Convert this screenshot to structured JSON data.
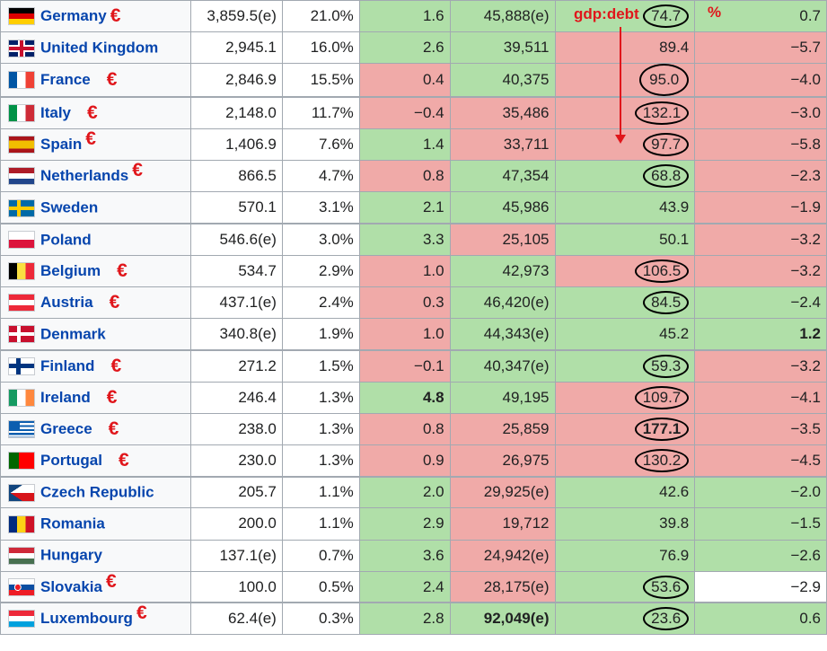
{
  "annotations": {
    "gdp_debt_label": "gdp:debt",
    "percent_label": "%"
  },
  "colors": {
    "green": "#b0dfa8",
    "red": "#f0aaa8",
    "euro": "#e0161b",
    "link": "#0645ad"
  },
  "rows": [
    {
      "country": "Germany",
      "flag": "flag-germany-icon",
      "euro": true,
      "gdp": "3,859.5(e)",
      "share": "21.0%",
      "growth": "1.6",
      "per_capita": "45,888(e)",
      "debt": "74.7",
      "balance": "0.7",
      "c": [
        "g",
        "g",
        "g",
        "g"
      ],
      "circled": true
    },
    {
      "country": "United Kingdom",
      "flag": "flag-uk-icon",
      "euro": false,
      "gdp": "2,945.1",
      "share": "16.0%",
      "growth": "2.6",
      "per_capita": "39,511",
      "debt": "89.4",
      "balance": "−5.7",
      "c": [
        "g",
        "g",
        "r",
        "r"
      ],
      "circled": false
    },
    {
      "country": "France",
      "flag": "flag-france-icon",
      "euro": true,
      "gdp": "2,846.9",
      "share": "15.5%",
      "growth": "0.4",
      "per_capita": "40,375",
      "debt": "95.0",
      "balance": "−4.0",
      "c": [
        "r",
        "g",
        "r",
        "r"
      ],
      "circled": true,
      "tall": true
    },
    {
      "country": "Italy",
      "flag": "flag-italy-icon",
      "euro": true,
      "gdp": "2,148.0",
      "share": "11.7%",
      "growth": "−0.4",
      "per_capita": "35,486",
      "debt": "132.1",
      "balance": "−3.0",
      "c": [
        "r",
        "r",
        "r",
        "r"
      ],
      "circled": true
    },
    {
      "country": "Spain",
      "flag": "flag-spain-icon",
      "euro": true,
      "gdp": "1,406.9",
      "share": "7.6%",
      "growth": "1.4",
      "per_capita": "33,711",
      "debt": "97.7",
      "balance": "−5.8",
      "c": [
        "g",
        "r",
        "r",
        "r"
      ],
      "circled": true
    },
    {
      "country": "Netherlands",
      "flag": "flag-netherlands-icon",
      "euro": true,
      "gdp": "866.5",
      "share": "4.7%",
      "growth": "0.8",
      "per_capita": "47,354",
      "debt": "68.8",
      "balance": "−2.3",
      "c": [
        "r",
        "g",
        "g",
        "r"
      ],
      "circled": true
    },
    {
      "country": "Sweden",
      "flag": "flag-sweden-icon",
      "euro": false,
      "gdp": "570.1",
      "share": "3.1%",
      "growth": "2.1",
      "per_capita": "45,986",
      "debt": "43.9",
      "balance": "−1.9",
      "c": [
        "g",
        "g",
        "g",
        "r"
      ],
      "circled": false
    },
    {
      "country": "Poland",
      "flag": "flag-poland-icon",
      "euro": false,
      "gdp": "546.6(e)",
      "share": "3.0%",
      "growth": "3.3",
      "per_capita": "25,105",
      "debt": "50.1",
      "balance": "−3.2",
      "c": [
        "g",
        "r",
        "g",
        "r"
      ],
      "circled": false
    },
    {
      "country": "Belgium",
      "flag": "flag-belgium-icon",
      "euro": true,
      "gdp": "534.7",
      "share": "2.9%",
      "growth": "1.0",
      "per_capita": "42,973",
      "debt": "106.5",
      "balance": "−3.2",
      "c": [
        "r",
        "g",
        "r",
        "r"
      ],
      "circled": true
    },
    {
      "country": "Austria",
      "flag": "flag-austria-icon",
      "euro": true,
      "gdp": "437.1(e)",
      "share": "2.4%",
      "growth": "0.3",
      "per_capita": "46,420(e)",
      "debt": "84.5",
      "balance": "−2.4",
      "c": [
        "r",
        "g",
        "g",
        "g"
      ],
      "circled": true
    },
    {
      "country": "Denmark",
      "flag": "flag-denmark-icon",
      "euro": false,
      "gdp": "340.8(e)",
      "share": "1.9%",
      "growth": "1.0",
      "per_capita": "44,343(e)",
      "debt": "45.2",
      "balance": "1.2",
      "c": [
        "r",
        "g",
        "g",
        "g"
      ],
      "circled": false,
      "bold_balance": true
    },
    {
      "country": "Finland",
      "flag": "flag-finland-icon",
      "euro": true,
      "gdp": "271.2",
      "share": "1.5%",
      "growth": "−0.1",
      "per_capita": "40,347(e)",
      "debt": "59.3",
      "balance": "−3.2",
      "c": [
        "r",
        "g",
        "g",
        "r"
      ],
      "circled": true
    },
    {
      "country": "Ireland",
      "flag": "flag-ireland-icon",
      "euro": true,
      "gdp": "246.4",
      "share": "1.3%",
      "growth": "4.8",
      "per_capita": "49,195",
      "debt": "109.7",
      "balance": "−4.1",
      "c": [
        "g",
        "g",
        "r",
        "r"
      ],
      "circled": true,
      "bold_growth": true
    },
    {
      "country": "Greece",
      "flag": "flag-greece-icon",
      "euro": true,
      "gdp": "238.0",
      "share": "1.3%",
      "growth": "0.8",
      "per_capita": "25,859",
      "debt": "177.1",
      "balance": "−3.5",
      "c": [
        "r",
        "r",
        "r",
        "r"
      ],
      "circled": true,
      "bold_debt": true
    },
    {
      "country": "Portugal",
      "flag": "flag-portugal-icon",
      "euro": true,
      "gdp": "230.0",
      "share": "1.3%",
      "growth": "0.9",
      "per_capita": "26,975",
      "debt": "130.2",
      "balance": "−4.5",
      "c": [
        "r",
        "r",
        "r",
        "r"
      ],
      "circled": true
    },
    {
      "country": "Czech Republic",
      "flag": "flag-czech-icon",
      "euro": false,
      "gdp": "205.7",
      "share": "1.1%",
      "growth": "2.0",
      "per_capita": "29,925(e)",
      "debt": "42.6",
      "balance": "−2.0",
      "c": [
        "g",
        "r",
        "g",
        "g"
      ],
      "circled": false
    },
    {
      "country": "Romania",
      "flag": "flag-romania-icon",
      "euro": false,
      "gdp": "200.0",
      "share": "1.1%",
      "growth": "2.9",
      "per_capita": "19,712",
      "debt": "39.8",
      "balance": "−1.5",
      "c": [
        "g",
        "r",
        "g",
        "g"
      ],
      "circled": false
    },
    {
      "country": "Hungary",
      "flag": "flag-hungary-icon",
      "euro": false,
      "gdp": "137.1(e)",
      "share": "0.7%",
      "growth": "3.6",
      "per_capita": "24,942(e)",
      "debt": "76.9",
      "balance": "−2.6",
      "c": [
        "g",
        "r",
        "g",
        "g"
      ],
      "circled": false
    },
    {
      "country": "Slovakia",
      "flag": "flag-slovakia-icon",
      "euro": true,
      "gdp": "100.0",
      "share": "0.5%",
      "growth": "2.4",
      "per_capita": "28,175(e)",
      "debt": "53.6",
      "balance": "−2.9",
      "c": [
        "g",
        "r",
        "g",
        "w"
      ],
      "circled": true
    },
    {
      "country": "Luxembourg",
      "flag": "flag-luxembourg-icon",
      "euro": true,
      "gdp": "62.4(e)",
      "share": "0.3%",
      "growth": "2.8",
      "per_capita": "92,049(e)",
      "debt": "23.6",
      "balance": "0.6",
      "c": [
        "g",
        "g",
        "g",
        "g"
      ],
      "circled": true,
      "bold_percap": true
    }
  ]
}
